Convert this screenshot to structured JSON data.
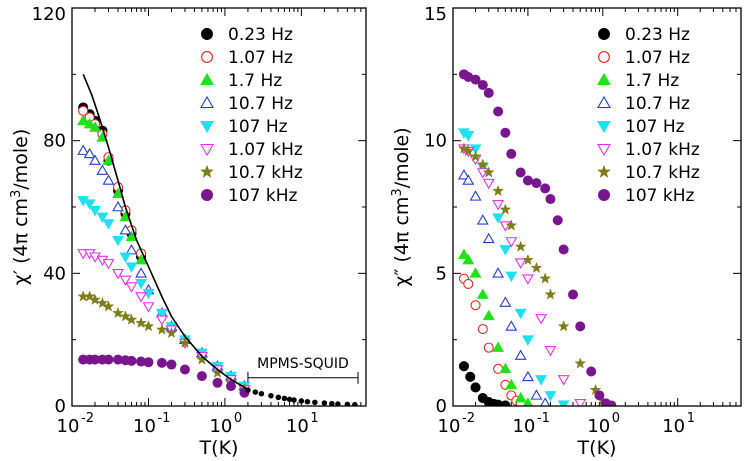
{
  "chart_data": [
    {
      "type": "scatter",
      "ylabel_prefix": "χ′ (4π cm",
      "ylabel_sup": "3",
      "ylabel_suffix": "/mole)",
      "xlabel": "T(K)",
      "xscale": "log",
      "xlim": [
        0.01,
        70
      ],
      "ylim": [
        0,
        120
      ],
      "xticks": [
        {
          "v": 0.01,
          "base": "10",
          "exp": "-2"
        },
        {
          "v": 0.1,
          "base": "10",
          "exp": "-1"
        },
        {
          "v": 1,
          "base": "10",
          "exp": "0"
        },
        {
          "v": 10,
          "base": "10",
          "exp": "1"
        }
      ],
      "yticks": [
        {
          "v": 0,
          "label": "0"
        },
        {
          "v": 40,
          "label": "40"
        },
        {
          "v": 80,
          "label": "80"
        },
        {
          "v": 120,
          "label": "120"
        }
      ],
      "legend_position": "top-right",
      "annotation": {
        "text": "MPMS-SQUID",
        "x_from": 2,
        "x_to": 55,
        "y": 8.5
      },
      "series": [
        {
          "name": "0.23 Hz",
          "marker": "circle",
          "filled": true,
          "color": "#000000",
          "x": [
            0.014,
            0.017,
            0.02,
            0.025,
            0.03,
            0.04,
            0.05,
            0.06,
            0.08
          ],
          "y": [
            90,
            88,
            86,
            83,
            74,
            65,
            58,
            52,
            45
          ]
        },
        {
          "name": "1.07 Hz",
          "marker": "circle",
          "filled": false,
          "color": "#e8261d",
          "x": [
            0.014,
            0.017,
            0.02,
            0.025,
            0.03,
            0.04,
            0.05,
            0.06,
            0.08
          ],
          "y": [
            89,
            87,
            85,
            82,
            75,
            66,
            59,
            53,
            46
          ]
        },
        {
          "name": "1.7 Hz",
          "marker": "triangle-up",
          "filled": true,
          "color": "#22e01a",
          "x": [
            0.014,
            0.017,
            0.02,
            0.025,
            0.03,
            0.04,
            0.05,
            0.06,
            0.08
          ],
          "y": [
            86,
            85,
            84,
            81,
            74,
            64,
            57,
            51,
            44
          ]
        },
        {
          "name": "10.7 Hz",
          "marker": "triangle-up",
          "filled": false,
          "color": "#1f3bd6",
          "x": [
            0.014,
            0.017,
            0.02,
            0.025,
            0.03,
            0.04,
            0.05,
            0.06,
            0.08,
            0.1,
            0.15,
            0.2,
            0.3,
            0.5,
            0.8,
            1.2,
            1.8
          ],
          "y": [
            77,
            76,
            74,
            71,
            68,
            60,
            53,
            47,
            40,
            35,
            28,
            24,
            20,
            16,
            12,
            9,
            6
          ]
        },
        {
          "name": "107 Hz",
          "marker": "triangle-down",
          "filled": true,
          "color": "#1fe0ee",
          "x": [
            0.014,
            0.017,
            0.02,
            0.025,
            0.03,
            0.04,
            0.05,
            0.06,
            0.08,
            0.1,
            0.15,
            0.2,
            0.3,
            0.5,
            0.8,
            1.2,
            1.8
          ],
          "y": [
            62,
            61,
            59,
            57,
            55,
            50,
            45,
            42,
            37,
            34,
            28,
            24,
            20,
            16,
            12,
            9,
            6
          ]
        },
        {
          "name": "1.07 kHz",
          "marker": "triangle-down",
          "filled": false,
          "color": "#ea2ef2",
          "x": [
            0.014,
            0.017,
            0.02,
            0.025,
            0.03,
            0.04,
            0.05,
            0.06,
            0.08,
            0.1,
            0.15,
            0.2,
            0.3,
            0.5,
            0.8,
            1.2,
            1.8
          ],
          "y": [
            46,
            46,
            45,
            44,
            43,
            40,
            38,
            36,
            33,
            30,
            26,
            23,
            19,
            15,
            11,
            8,
            5
          ]
        },
        {
          "name": "10.7 kHz",
          "marker": "star",
          "filled": true,
          "color": "#7d7d1a",
          "x": [
            0.014,
            0.017,
            0.02,
            0.025,
            0.03,
            0.04,
            0.05,
            0.06,
            0.08,
            0.1,
            0.15,
            0.2,
            0.3,
            0.5,
            0.8,
            1.2,
            1.8
          ],
          "y": [
            33,
            33,
            32,
            31,
            30,
            28,
            27,
            26,
            25,
            24,
            23,
            22,
            19,
            14,
            10,
            7,
            5
          ]
        },
        {
          "name": "107 kHz",
          "marker": "sphere",
          "filled": true,
          "color": "#7a1590",
          "x": [
            0.014,
            0.017,
            0.02,
            0.025,
            0.03,
            0.04,
            0.05,
            0.06,
            0.08,
            0.1,
            0.15,
            0.2,
            0.3,
            0.5,
            0.8,
            1.2,
            1.8
          ],
          "y": [
            14,
            14,
            14,
            14,
            14,
            14,
            13.8,
            13.6,
            13.4,
            13.2,
            13,
            12.5,
            11,
            9,
            7,
            6,
            4
          ]
        },
        {
          "name": "",
          "marker": "line",
          "filled": false,
          "color": "#000000",
          "x": [
            0.014,
            0.018,
            0.022,
            0.03,
            0.04,
            0.05,
            0.07,
            0.1,
            0.15,
            0.2,
            0.3,
            0.5,
            0.8,
            1.2,
            2.0
          ],
          "y": [
            100,
            94,
            88,
            78,
            68,
            60,
            50,
            42,
            33,
            27,
            21,
            15,
            11,
            8,
            5
          ]
        },
        {
          "name": "",
          "marker": "small-dot",
          "filled": true,
          "color": "#000000",
          "x": [
            2,
            2.5,
            3,
            4,
            5,
            6,
            7,
            8,
            10,
            12,
            15,
            20,
            25,
            30,
            40,
            50
          ],
          "y": [
            4.8,
            4.2,
            3.7,
            3.1,
            2.6,
            2.3,
            2.0,
            1.8,
            1.5,
            1.3,
            1.1,
            0.9,
            0.7,
            0.6,
            0.5,
            0.4
          ]
        }
      ]
    },
    {
      "type": "scatter",
      "ylabel_prefix": "χ″ (4π cm",
      "ylabel_sup": "3",
      "ylabel_suffix": "/mole)",
      "xlabel": "T(K)",
      "xscale": "log",
      "xlim": [
        0.01,
        70
      ],
      "ylim": [
        0,
        15
      ],
      "xticks": [
        {
          "v": 0.01,
          "base": "10",
          "exp": "-2"
        },
        {
          "v": 0.1,
          "base": "10",
          "exp": "-1"
        },
        {
          "v": 1,
          "base": "10",
          "exp": "0"
        },
        {
          "v": 10,
          "base": "10",
          "exp": "1"
        }
      ],
      "yticks": [
        {
          "v": 0,
          "label": "0"
        },
        {
          "v": 5,
          "label": "5"
        },
        {
          "v": 10,
          "label": "10"
        },
        {
          "v": 15,
          "label": "15"
        }
      ],
      "legend_position": "top-right",
      "series": [
        {
          "name": "0.23 Hz",
          "marker": "circle",
          "filled": true,
          "color": "#000000",
          "x": [
            0.014,
            0.017,
            0.02,
            0.025,
            0.03,
            0.035,
            0.04,
            0.05
          ],
          "y": [
            1.5,
            1.1,
            0.7,
            0.3,
            0.15,
            0.08,
            0.05,
            0.02
          ]
        },
        {
          "name": "1.07 Hz",
          "marker": "circle",
          "filled": false,
          "color": "#e8261d",
          "x": [
            0.014,
            0.016,
            0.02,
            0.025,
            0.03,
            0.04,
            0.05,
            0.06,
            0.07,
            0.08
          ],
          "y": [
            4.8,
            4.6,
            3.8,
            2.9,
            2.2,
            1.4,
            0.8,
            0.4,
            0.2,
            0.1
          ]
        },
        {
          "name": "1.7 Hz",
          "marker": "triangle-up",
          "filled": true,
          "color": "#22e01a",
          "x": [
            0.014,
            0.016,
            0.02,
            0.025,
            0.03,
            0.04,
            0.05,
            0.06,
            0.08,
            0.1
          ],
          "y": [
            5.7,
            5.5,
            5.0,
            4.2,
            3.4,
            2.2,
            1.4,
            0.8,
            0.3,
            0.1
          ]
        },
        {
          "name": "10.7 Hz",
          "marker": "triangle-up",
          "filled": false,
          "color": "#1f3bd6",
          "x": [
            0.014,
            0.016,
            0.02,
            0.025,
            0.03,
            0.04,
            0.05,
            0.06,
            0.08,
            0.1,
            0.13,
            0.17
          ],
          "y": [
            8.7,
            8.5,
            7.9,
            7.0,
            6.3,
            5.0,
            3.9,
            3.0,
            1.9,
            1.1,
            0.4,
            0.1
          ]
        },
        {
          "name": "107 Hz",
          "marker": "triangle-down",
          "filled": true,
          "color": "#1fe0ee",
          "x": [
            0.014,
            0.016,
            0.02,
            0.025,
            0.03,
            0.04,
            0.05,
            0.06,
            0.08,
            0.1,
            0.15,
            0.2,
            0.3
          ],
          "y": [
            10.3,
            10.2,
            9.7,
            9.0,
            8.4,
            7.1,
            5.9,
            4.9,
            3.5,
            2.5,
            1.0,
            0.4,
            0.05
          ]
        },
        {
          "name": "1.07 kHz",
          "marker": "triangle-down",
          "filled": false,
          "color": "#ea2ef2",
          "x": [
            0.014,
            0.016,
            0.02,
            0.025,
            0.03,
            0.04,
            0.05,
            0.06,
            0.08,
            0.1,
            0.15,
            0.2,
            0.3,
            0.5
          ],
          "y": [
            9.7,
            9.6,
            9.3,
            8.8,
            8.4,
            7.6,
            6.8,
            6.2,
            5.4,
            4.8,
            3.3,
            2.1,
            1.0,
            0.1
          ]
        },
        {
          "name": "10.7 kHz",
          "marker": "star",
          "filled": true,
          "color": "#7d7d1a",
          "x": [
            0.014,
            0.016,
            0.02,
            0.025,
            0.03,
            0.04,
            0.05,
            0.06,
            0.08,
            0.1,
            0.13,
            0.17,
            0.2,
            0.3,
            0.5,
            0.8,
            1.0
          ],
          "y": [
            9.7,
            9.6,
            9.4,
            9.1,
            8.8,
            8.1,
            7.4,
            6.8,
            6.0,
            5.5,
            5.2,
            4.8,
            4.2,
            3.0,
            1.6,
            0.6,
            0.2
          ]
        },
        {
          "name": "107 kHz",
          "marker": "sphere",
          "filled": true,
          "color": "#7a1590",
          "x": [
            0.014,
            0.016,
            0.02,
            0.025,
            0.03,
            0.04,
            0.05,
            0.06,
            0.08,
            0.1,
            0.13,
            0.17,
            0.2,
            0.25,
            0.3,
            0.4,
            0.5,
            0.7,
            0.9,
            1.1,
            1.3
          ],
          "y": [
            12.5,
            12.4,
            12.3,
            12.1,
            11.8,
            11.1,
            10.3,
            9.5,
            8.8,
            8.5,
            8.4,
            8.2,
            7.8,
            7.0,
            5.9,
            4.2,
            3.0,
            1.3,
            0.4,
            0.1,
            0.02
          ]
        }
      ]
    }
  ]
}
